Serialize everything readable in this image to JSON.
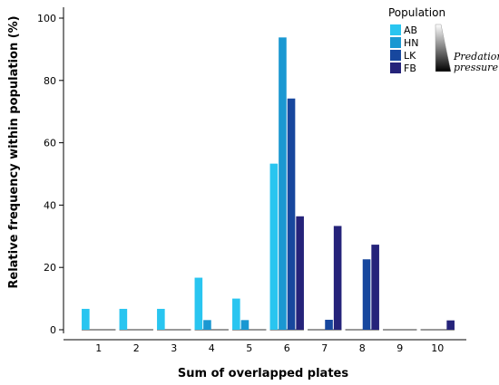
{
  "chart_data": {
    "type": "bar",
    "title": "",
    "xlabel": "Sum of overlapped plates",
    "ylabel": "Relative frequency within population (%)",
    "categories": [
      "1",
      "2",
      "3",
      "4",
      "5",
      "6",
      "7",
      "8",
      "9",
      "10"
    ],
    "ylim": [
      0,
      100
    ],
    "yticks": [
      0,
      20,
      40,
      60,
      80,
      100
    ],
    "grid": false,
    "legend": {
      "title": "Population",
      "placement": "top-right",
      "annotation_line1": "Predation",
      "annotation_line2": "pressure"
    },
    "series": [
      {
        "name": "AB",
        "color": "#29c5f0",
        "values": [
          6.7,
          6.7,
          6.7,
          16.7,
          10,
          53.3,
          0,
          0,
          0,
          0
        ]
      },
      {
        "name": "HN",
        "color": "#1a98d2",
        "values": [
          0,
          0,
          0,
          3.1,
          3.1,
          93.8,
          0,
          0,
          0,
          0
        ]
      },
      {
        "name": "LK",
        "color": "#17479e",
        "values": [
          0,
          0,
          0,
          0,
          0,
          74.2,
          3.2,
          22.6,
          0,
          0
        ]
      },
      {
        "name": "FB",
        "color": "#25237a",
        "values": [
          0,
          0,
          0,
          0,
          0,
          36.4,
          33.3,
          27.3,
          0,
          3.0
        ]
      }
    ]
  }
}
